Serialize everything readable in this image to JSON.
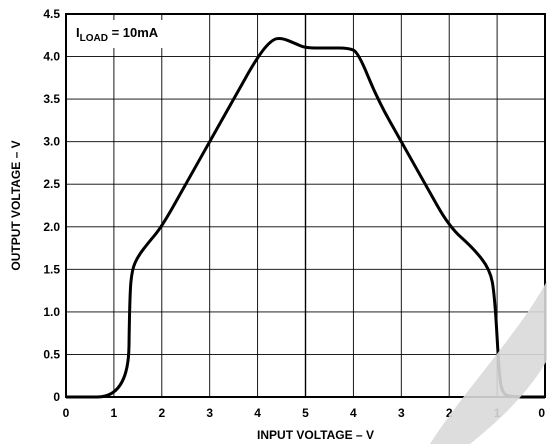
{
  "chart_data": {
    "type": "line",
    "title": "",
    "xlabel": "INPUT VOLTAGE – V",
    "ylabel": "OUTPUT VOLTAGE – V",
    "x_tick_labels": [
      "0",
      "1",
      "2",
      "3",
      "4",
      "5",
      "4",
      "3",
      "2",
      "1",
      "0"
    ],
    "y_tick_labels": [
      "0",
      "0.5",
      "1.0",
      "1.5",
      "2.0",
      "2.5",
      "3.0",
      "3.5",
      "4.0",
      "4.5"
    ],
    "ylim": [
      0,
      4.5
    ],
    "grid": true,
    "annotation": {
      "main": "I",
      "sub": "LOAD",
      "rest": " = 10mA"
    },
    "x_axis_note": "input voltage rises 0→5 V then falls 5→0 V along the horizontal axis",
    "series": [
      {
        "x_position": [
          0,
          1.3,
          1.33,
          1.38,
          1.5,
          1.7,
          2.0,
          2.5,
          3.0,
          3.5,
          4.0,
          4.3,
          4.5,
          4.8,
          5.0,
          5.5,
          5.9,
          6.1,
          6.5,
          7.0,
          7.5,
          8.0,
          8.5,
          8.85,
          8.95,
          9.05,
          9.12,
          9.25,
          10.0
        ],
        "y": [
          0,
          0,
          1.2,
          1.5,
          1.65,
          1.8,
          2.0,
          2.5,
          3.0,
          3.5,
          4.0,
          4.2,
          4.22,
          4.15,
          4.1,
          4.1,
          4.1,
          4.05,
          3.5,
          3.0,
          2.5,
          2.0,
          1.75,
          1.5,
          1.2,
          0.2,
          0.05,
          0.0,
          0.0
        ]
      }
    ]
  }
}
